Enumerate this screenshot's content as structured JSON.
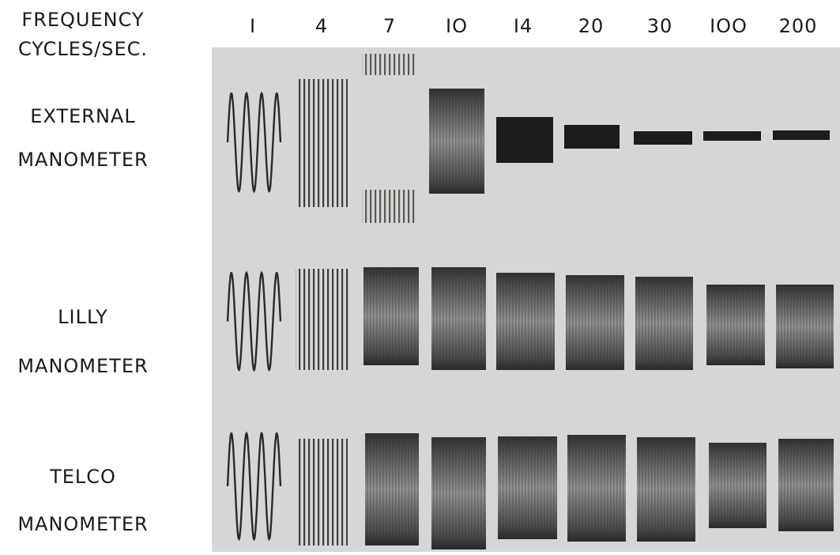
{
  "header": {
    "label_lines": [
      "FREQUENCY",
      "CYCLES/SEC."
    ],
    "frequencies": [
      "I",
      "4",
      "7",
      "IO",
      "I4",
      "20",
      "30",
      "IOO",
      "200"
    ]
  },
  "rows": [
    {
      "label_lines": [
        "EXTERNAL",
        "MANOMETER"
      ]
    },
    {
      "label_lines": [
        "LILLY",
        "MANOMETER"
      ]
    },
    {
      "label_lines": [
        "TELCO",
        "MANOMETER"
      ]
    }
  ]
}
